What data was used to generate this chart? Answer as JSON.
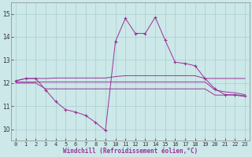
{
  "xlabel": "Windchill (Refroidissement éolien,°C)",
  "background_color": "#cce8e8",
  "grid_color": "#aacfcf",
  "line_color": "#993399",
  "xlim": [
    -0.5,
    23.5
  ],
  "ylim": [
    9.5,
    15.5
  ],
  "yticks": [
    10,
    11,
    12,
    13,
    14,
    15
  ],
  "xticks": [
    0,
    1,
    2,
    3,
    4,
    5,
    6,
    7,
    8,
    9,
    10,
    11,
    12,
    13,
    14,
    15,
    16,
    17,
    18,
    19,
    20,
    21,
    22,
    23
  ],
  "series": {
    "main": {
      "x": [
        0,
        1,
        2,
        3,
        4,
        5,
        6,
        7,
        8,
        9,
        10,
        11,
        12,
        13,
        14,
        15,
        16,
        17,
        18,
        19,
        20,
        21,
        22,
        23
      ],
      "y": [
        12.1,
        12.2,
        12.2,
        11.7,
        11.2,
        10.85,
        10.75,
        10.6,
        10.3,
        9.95,
        13.8,
        14.8,
        14.15,
        14.15,
        14.85,
        13.85,
        12.9,
        12.85,
        12.75,
        12.2,
        11.75,
        11.5,
        11.5,
        11.45
      ]
    },
    "line1": {
      "x": [
        0,
        1,
        2,
        3,
        4,
        5,
        6,
        7,
        8,
        9,
        10,
        11,
        12,
        13,
        14,
        15,
        16,
        17,
        18,
        19,
        20,
        21,
        22,
        23
      ],
      "y": [
        12.1,
        12.2,
        12.2,
        12.2,
        12.22,
        12.22,
        12.22,
        12.22,
        12.22,
        12.22,
        12.28,
        12.32,
        12.32,
        12.32,
        12.32,
        12.32,
        12.32,
        12.32,
        12.32,
        12.2,
        12.2,
        12.2,
        12.2,
        12.2
      ]
    },
    "line2": {
      "x": [
        0,
        1,
        2,
        3,
        4,
        5,
        6,
        7,
        8,
        9,
        10,
        11,
        12,
        13,
        14,
        15,
        16,
        17,
        18,
        19,
        20,
        21,
        22,
        23
      ],
      "y": [
        12.05,
        12.05,
        12.05,
        12.05,
        12.05,
        12.05,
        12.05,
        12.05,
        12.05,
        12.05,
        12.05,
        12.05,
        12.05,
        12.05,
        12.05,
        12.05,
        12.05,
        12.05,
        12.05,
        12.05,
        11.7,
        11.62,
        11.58,
        11.5
      ]
    },
    "line3": {
      "x": [
        0,
        1,
        2,
        3,
        4,
        5,
        6,
        7,
        8,
        9,
        10,
        11,
        12,
        13,
        14,
        15,
        16,
        17,
        18,
        19,
        20,
        21,
        22,
        23
      ],
      "y": [
        12.0,
        12.0,
        12.0,
        11.75,
        11.75,
        11.75,
        11.75,
        11.75,
        11.75,
        11.75,
        11.75,
        11.75,
        11.75,
        11.75,
        11.75,
        11.75,
        11.75,
        11.75,
        11.75,
        11.75,
        11.48,
        11.48,
        11.48,
        11.42
      ]
    }
  }
}
